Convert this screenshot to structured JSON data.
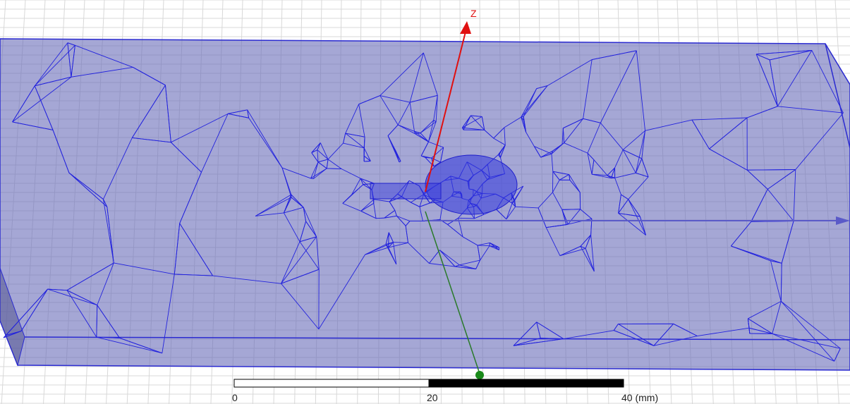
{
  "axis_label": "Z",
  "scale_bar": {
    "ticks": [
      {
        "value": 0,
        "label": "0"
      },
      {
        "value": 20,
        "label": "20"
      },
      {
        "value": 40,
        "label": "40 (mm)"
      }
    ]
  }
}
